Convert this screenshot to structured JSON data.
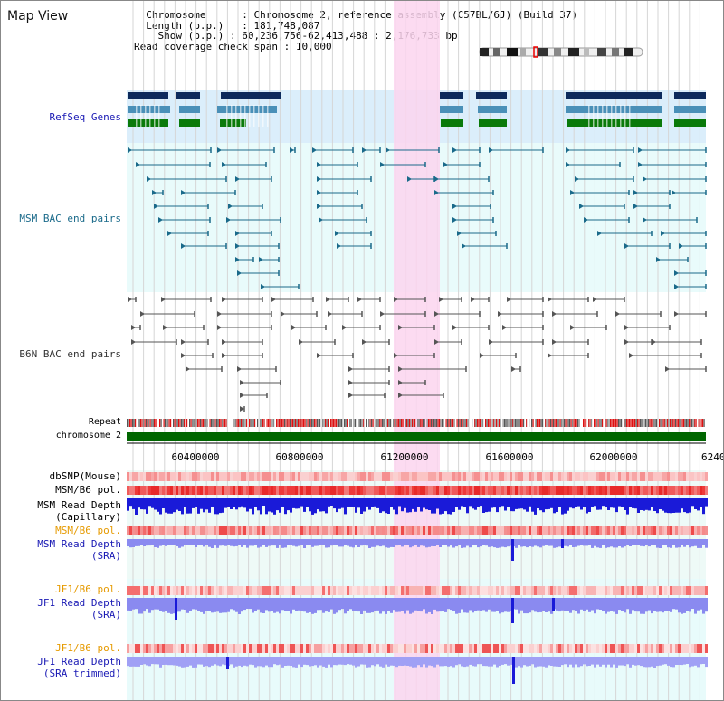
{
  "title": "Map View",
  "info": {
    "chromosome_label": "Chromosome",
    "chromosome_value": "Chromosome 2, reference assembly (C57BL/6J) (Build 37)",
    "length_label": "Length (b.p.)",
    "length_value": "181,748,087",
    "show_label": "Show (b.p.)",
    "show_value": "60,236,756-62,413,488 : 2,176,733 bp",
    "coverage_label": "Read coverage check span",
    "coverage_value": "10,000"
  },
  "tracks": {
    "refseq": {
      "label": "RefSeq Genes",
      "color": "#1919b4"
    },
    "msm_bac": {
      "label": "MSM BAC end pairs",
      "color": "#1a6a8a"
    },
    "b6n_bac": {
      "label": "B6N BAC end pairs",
      "color": "#333333"
    },
    "repeat": {
      "label": "Repeat"
    },
    "chromosome": {
      "label": "chromosome 2",
      "color": "#006600"
    },
    "dbsnp": {
      "label": "dbSNP(Mouse)"
    },
    "msm_b6_pol_1": {
      "label": "MSM/B6 pol."
    },
    "msm_read_cap": {
      "label1": "MSM Read Depth",
      "label2": "(Capillary)"
    },
    "msm_b6_pol_2": {
      "label": "MSM/B6 pol.",
      "color": "#e69a00"
    },
    "msm_read_sra": {
      "label1": "MSM Read Depth",
      "label2": "(SRA)",
      "color": "#1919b4"
    },
    "jf1_b6_pol_1": {
      "label": "JF1/B6 pol.",
      "color": "#e69a00"
    },
    "jf1_read_sra": {
      "label1": "JF1 Read Depth",
      "label2": "(SRA)",
      "color": "#1919b4"
    },
    "jf1_b6_pol_2": {
      "label": "JF1/B6 pol.",
      "color": "#e69a00"
    },
    "jf1_read_trim": {
      "label1": "JF1 Read Depth",
      "label2": "(SRA trimmed)",
      "color": "#1919b4"
    }
  },
  "axis": {
    "ticks": [
      "60400000",
      "60800000",
      "61200000",
      "61600000",
      "62000000",
      "6240"
    ]
  },
  "colors": {
    "highlight": "#fbd5ee",
    "refseq_bg": "#dbeefb",
    "bac_bg": "#e9fbfb",
    "gene_dark": "#0d2a5c",
    "gene_mid": "#4a90b8",
    "gene_green": "#0a7a0a",
    "depth_blue": "#1a1ad8",
    "depth_light": "#8a8af0"
  }
}
